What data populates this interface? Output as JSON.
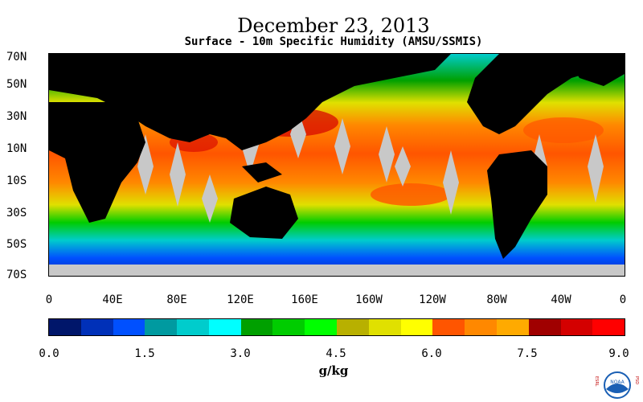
{
  "title": "December 23, 2013",
  "subtitle": "Surface - 10m Specific Humidity (AMSU/SSMIS)",
  "lat_labels": [
    "70N",
    "50N",
    "30N",
    "10N",
    "10S",
    "30S",
    "50S",
    "70S"
  ],
  "lon_labels": [
    "0",
    "40E",
    "80E",
    "120E",
    "160E",
    "160W",
    "120W",
    "80W",
    "40W",
    "0"
  ],
  "colorbar": {
    "colors": [
      "#00166a",
      "#0030b8",
      "#0050ff",
      "#009aa0",
      "#00cccc",
      "#00ffff",
      "#00a000",
      "#00cc00",
      "#00ff00",
      "#b8b000",
      "#e0e000",
      "#ffff00",
      "#ff5500",
      "#ff8800",
      "#ffaa00",
      "#a00000",
      "#d40000",
      "#ff0000"
    ],
    "tick_labels": [
      "0.0",
      "1.5",
      "3.0",
      "4.5",
      "6.0",
      "7.5",
      "9.0"
    ],
    "units": "g/kg"
  },
  "logo_text": {
    "left": "ESRL",
    "right": "PSD",
    "center": "NOAA"
  }
}
